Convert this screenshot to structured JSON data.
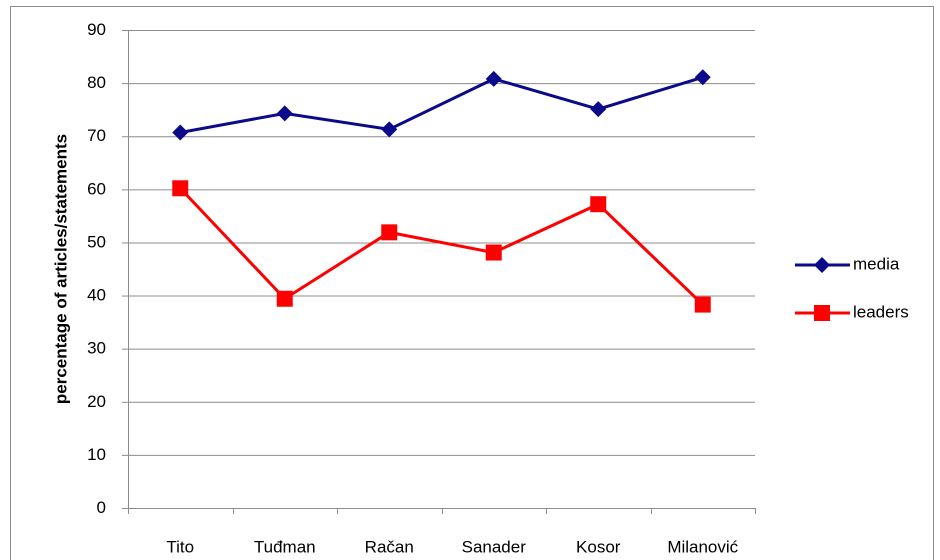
{
  "chart_data": {
    "type": "line",
    "y_label": "percentage of articles/statements",
    "categories": [
      "Tito",
      "Tuđman",
      "Račan",
      "Sanader",
      "Kosor",
      "Milanović"
    ],
    "series": [
      {
        "name": "media",
        "color": "#0a0a8a",
        "marker": "diamond",
        "values": [
          70.7,
          74.3,
          71.3,
          80.8,
          75.1,
          81.1
        ]
      },
      {
        "name": "leaders",
        "color": "#ff0000",
        "marker": "square",
        "values": [
          60.2,
          39.4,
          51.9,
          48.1,
          57.2,
          38.3
        ]
      }
    ],
    "ylim": [
      0,
      90
    ],
    "yticks": [
      0,
      10,
      20,
      30,
      40,
      50,
      60,
      70,
      80,
      90
    ],
    "grid": true,
    "legend": "right"
  }
}
